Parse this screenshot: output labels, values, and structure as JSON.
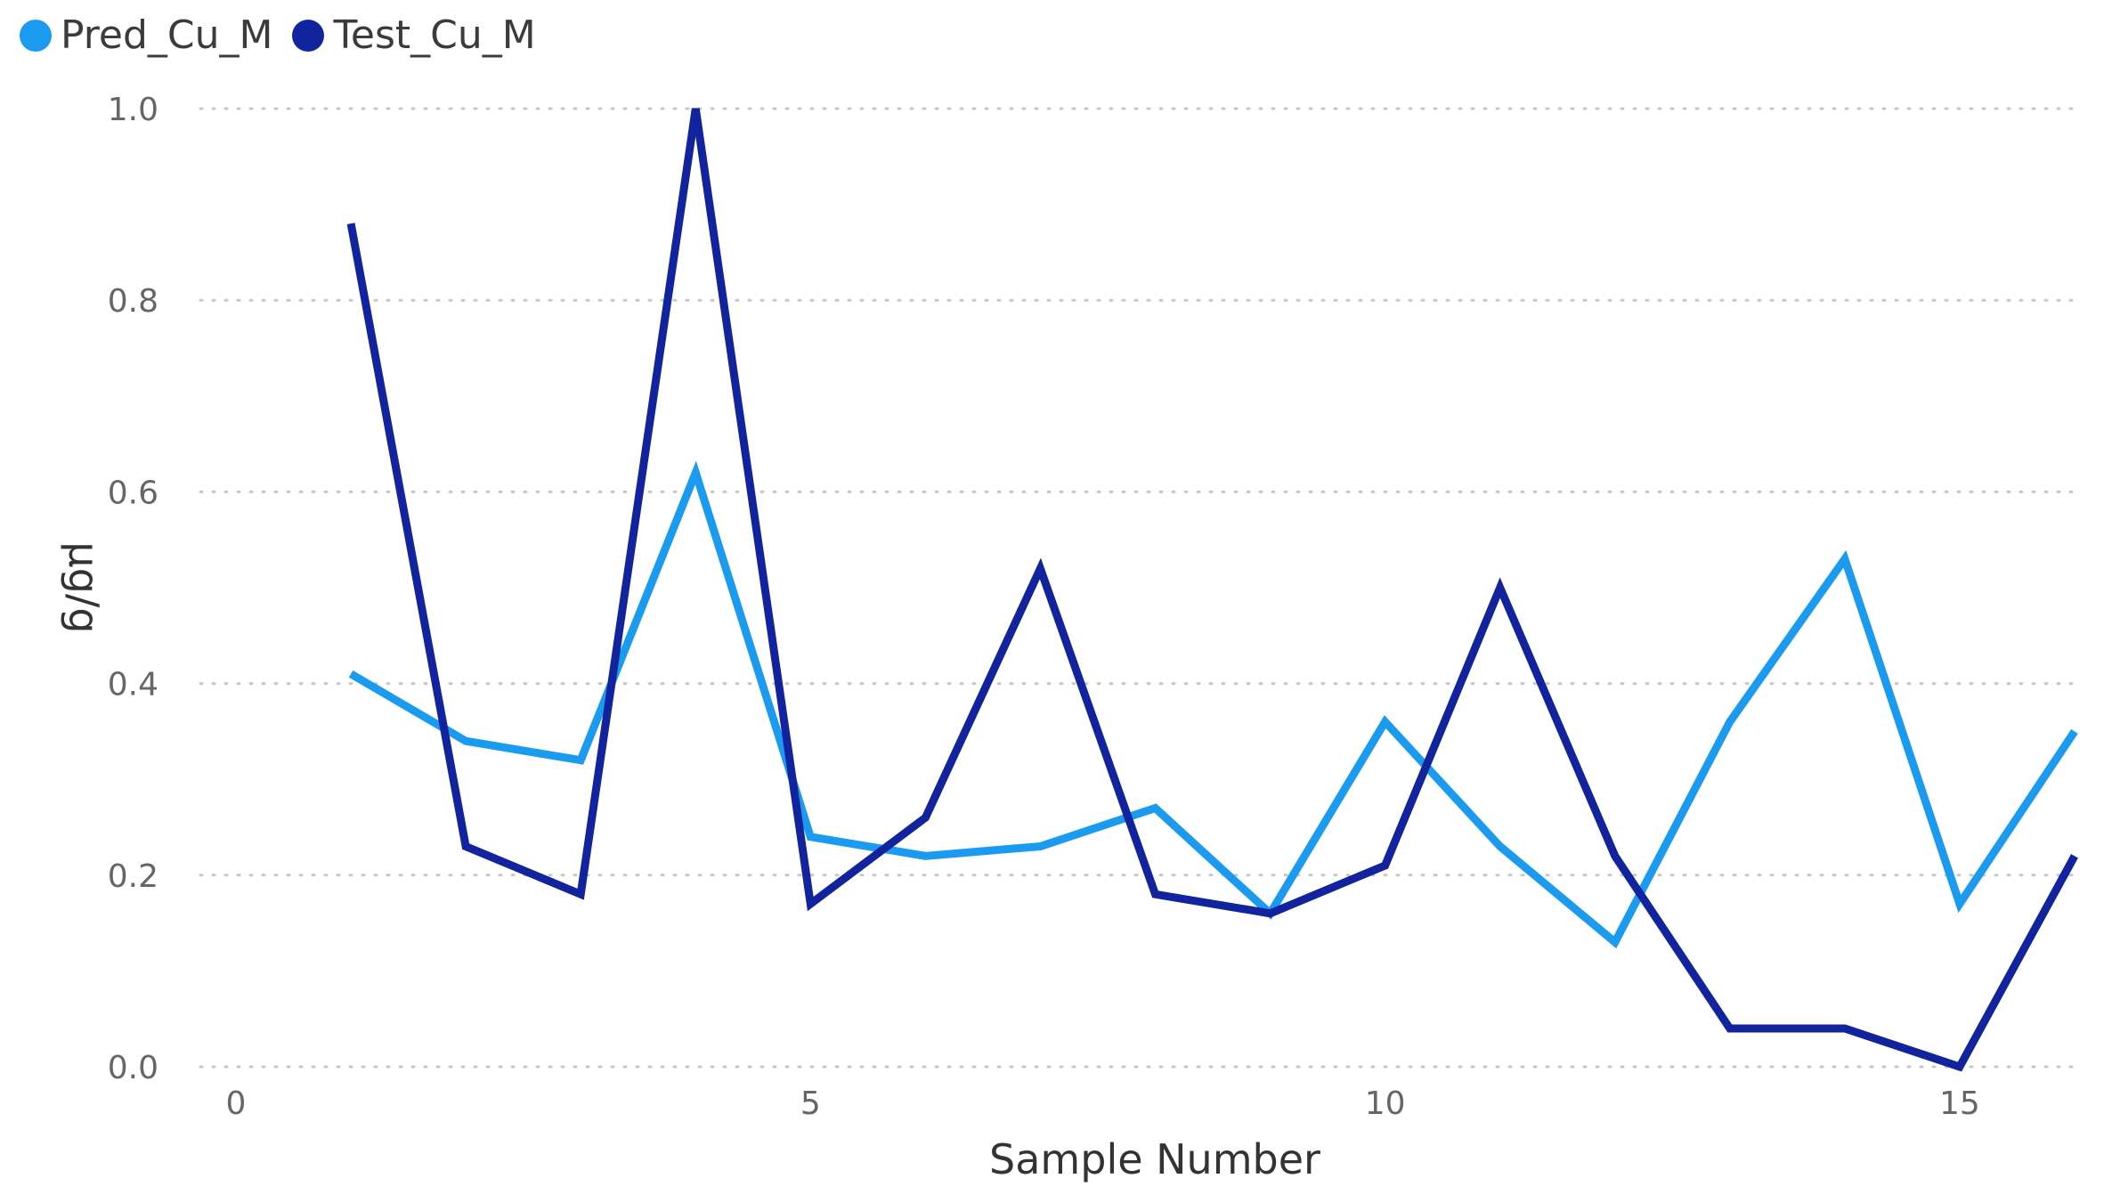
{
  "chart_data": {
    "type": "line",
    "title": "",
    "xlabel": "Sample Number",
    "ylabel": "µg/g",
    "x": [
      1,
      2,
      3,
      4,
      5,
      6,
      7,
      8,
      9,
      10,
      11,
      12,
      13,
      14,
      15,
      16
    ],
    "xlim": [
      0,
      16
    ],
    "ylim": [
      0,
      1.0
    ],
    "xticks": [
      0,
      5,
      10,
      15
    ],
    "yticks": [
      0.0,
      0.2,
      0.4,
      0.6,
      0.8,
      1.0
    ],
    "xtick_labels": [
      "0",
      "5",
      "10",
      "15"
    ],
    "ytick_labels": [
      "0.0",
      "0.2",
      "0.4",
      "0.6",
      "0.8",
      "1.0"
    ],
    "grid": "horizontal dotted",
    "legend_position": "top-left",
    "series": [
      {
        "name": "Pred_Cu_M",
        "color": "#1a9bef",
        "values": [
          0.41,
          0.34,
          0.32,
          0.62,
          0.24,
          0.22,
          0.23,
          0.27,
          0.16,
          0.36,
          0.23,
          0.13,
          0.36,
          0.53,
          0.17,
          0.35
        ]
      },
      {
        "name": "Test_Cu_M",
        "color": "#12239e",
        "values": [
          0.88,
          0.23,
          0.18,
          1.0,
          0.17,
          0.26,
          0.52,
          0.18,
          0.16,
          0.21,
          0.5,
          0.22,
          0.04,
          0.04,
          0.0,
          0.22
        ]
      }
    ]
  }
}
